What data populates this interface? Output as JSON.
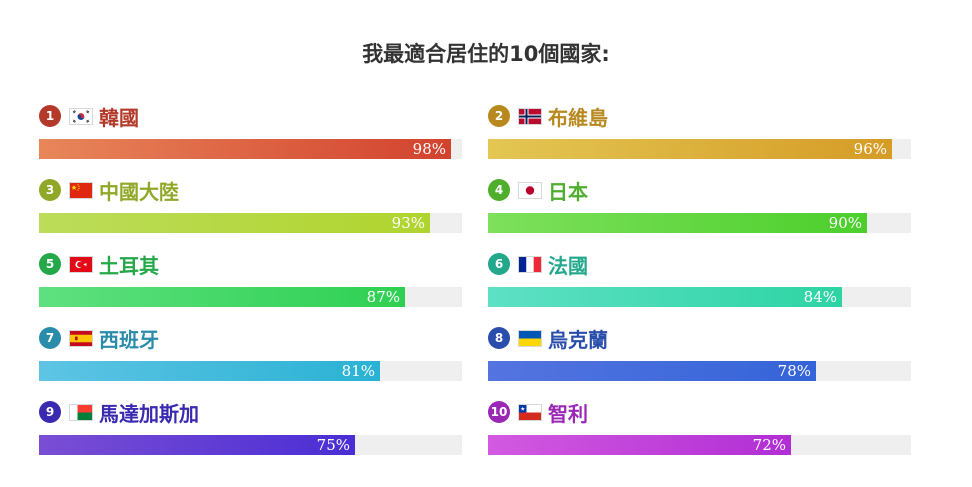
{
  "title": "我最適合居住的10個國家:",
  "chart_data": {
    "type": "bar",
    "title": "我最適合居住的10個國家:",
    "categories": [
      "韓國",
      "布維島",
      "中國大陸",
      "日本",
      "土耳其",
      "法國",
      "西班牙",
      "烏克蘭",
      "馬達加斯加",
      "智利"
    ],
    "values": [
      98,
      96,
      93,
      90,
      87,
      84,
      81,
      78,
      75,
      72
    ],
    "ylim": [
      0,
      100
    ],
    "items": [
      {
        "rank": "1",
        "country": "韓國",
        "value": 98,
        "pct": "98%",
        "flag_icon": "south-korea-flag-icon",
        "color": "#b33a2a",
        "grad": [
          "#e8865a",
          "#d2422e"
        ]
      },
      {
        "rank": "2",
        "country": "布維島",
        "value": 96,
        "pct": "96%",
        "flag_icon": "norway-flag-icon",
        "color": "#b8891f",
        "grad": [
          "#e3c653",
          "#d59c26"
        ]
      },
      {
        "rank": "3",
        "country": "中國大陸",
        "value": 93,
        "pct": "93%",
        "flag_icon": "china-flag-icon",
        "color": "#90a828",
        "grad": [
          "#bcdc5a",
          "#b0d42e"
        ]
      },
      {
        "rank": "4",
        "country": "日本",
        "value": 90,
        "pct": "90%",
        "flag_icon": "japan-flag-icon",
        "color": "#4fae2c",
        "grad": [
          "#7ee05c",
          "#4ccf2c"
        ]
      },
      {
        "rank": "5",
        "country": "土耳其",
        "value": 87,
        "pct": "87%",
        "flag_icon": "turkey-flag-icon",
        "color": "#25a84a",
        "grad": [
          "#5ee080",
          "#2ed052"
        ]
      },
      {
        "rank": "6",
        "country": "法國",
        "value": 84,
        "pct": "84%",
        "flag_icon": "france-flag-icon",
        "color": "#24a88c",
        "grad": [
          "#5ee0c4",
          "#2ed4a4"
        ]
      },
      {
        "rank": "7",
        "country": "西班牙",
        "value": 81,
        "pct": "81%",
        "flag_icon": "spain-flag-icon",
        "color": "#2a8cab",
        "grad": [
          "#5ec4e4",
          "#2ab2d4"
        ]
      },
      {
        "rank": "8",
        "country": "烏克蘭",
        "value": 78,
        "pct": "78%",
        "flag_icon": "ukraine-flag-icon",
        "color": "#2a4eab",
        "grad": [
          "#5474e0",
          "#3464d8"
        ]
      },
      {
        "rank": "9",
        "country": "馬達加斯加",
        "value": 75,
        "pct": "75%",
        "flag_icon": "madagascar-flag-icon",
        "color": "#3a2ab0",
        "grad": [
          "#7a4ed4",
          "#4a2ed4"
        ]
      },
      {
        "rank": "10",
        "country": "智利",
        "value": 72,
        "pct": "72%",
        "flag_icon": "chile-flag-icon",
        "color": "#9a28b4",
        "grad": [
          "#d25ae0",
          "#b02ed4"
        ]
      }
    ]
  }
}
